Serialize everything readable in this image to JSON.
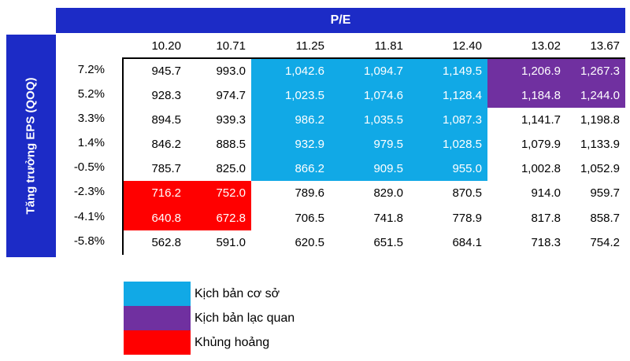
{
  "header": {
    "title": "P/E"
  },
  "y_axis": {
    "label": "Tăng trưởng EPS (QOQ)"
  },
  "colors": {
    "header_blue": "#1c2bc6",
    "base_scenario": "#11a9e6",
    "optimistic_scenario": "#7030a0",
    "crisis": "#ff0000",
    "border": "#000000"
  },
  "table": {
    "columns": [
      "10.20",
      "10.71",
      "11.25",
      "11.81",
      "12.40",
      "13.02",
      "13.67"
    ],
    "rows": [
      {
        "label": "7.2%",
        "values": [
          "945.7",
          "993.0",
          "1,042.6",
          "1,094.7",
          "1,149.5",
          "1,206.9",
          "1,267.3"
        ]
      },
      {
        "label": "5.2%",
        "values": [
          "928.3",
          "974.7",
          "1,023.5",
          "1,074.6",
          "1,128.4",
          "1,184.8",
          "1,244.0"
        ]
      },
      {
        "label": "3.3%",
        "values": [
          "894.5",
          "939.3",
          "986.2",
          "1,035.5",
          "1,087.3",
          "1,141.7",
          "1,198.8"
        ]
      },
      {
        "label": "1.4%",
        "values": [
          "846.2",
          "888.5",
          "932.9",
          "979.5",
          "1,028.5",
          "1,079.9",
          "1,133.9"
        ]
      },
      {
        "label": "-0.5%",
        "values": [
          "785.7",
          "825.0",
          "866.2",
          "909.5",
          "955.0",
          "1,002.8",
          "1,052.9"
        ]
      },
      {
        "label": "-2.3%",
        "values": [
          "716.2",
          "752.0",
          "789.6",
          "829.0",
          "870.5",
          "914.0",
          "959.7"
        ]
      },
      {
        "label": "-4.1%",
        "values": [
          "640.8",
          "672.8",
          "706.5",
          "741.8",
          "778.9",
          "817.8",
          "858.7"
        ]
      },
      {
        "label": "-5.8%",
        "values": [
          "562.8",
          "591.0",
          "620.5",
          "651.5",
          "684.1",
          "718.3",
          "754.2"
        ]
      }
    ],
    "zones": [
      {
        "class": "base",
        "name": "Kịch bản cơ sở",
        "rows": [
          0,
          4
        ],
        "cols": [
          2,
          4
        ]
      },
      {
        "class": "opt",
        "name": "Kịch bản lạc quan",
        "rows": [
          0,
          1
        ],
        "cols": [
          5,
          6
        ]
      },
      {
        "class": "crisis",
        "name": "Khủng hoảng",
        "rows": [
          5,
          6
        ],
        "cols": [
          0,
          1
        ]
      }
    ]
  },
  "legend": [
    {
      "label": "Kịch bản cơ sở",
      "color": "#11a9e6"
    },
    {
      "label": "Kịch bản lạc quan",
      "color": "#7030a0"
    },
    {
      "label": "Khủng hoảng",
      "color": "#ff0000"
    }
  ],
  "chart_data": {
    "type": "heatmap",
    "title": "P/E sensitivity table",
    "xlabel": "P/E",
    "ylabel": "Tăng trưởng EPS (QOQ)",
    "x_ticks": [
      10.2,
      10.71,
      11.25,
      11.81,
      12.4,
      13.02,
      13.67
    ],
    "y_ticks": [
      "7.2%",
      "5.2%",
      "3.3%",
      "1.4%",
      "-0.5%",
      "-2.3%",
      "-4.1%",
      "-5.8%"
    ],
    "values": [
      [
        945.7,
        993.0,
        1042.6,
        1094.7,
        1149.5,
        1206.9,
        1267.3
      ],
      [
        928.3,
        974.7,
        1023.5,
        1074.6,
        1128.4,
        1184.8,
        1244.0
      ],
      [
        894.5,
        939.3,
        986.2,
        1035.5,
        1087.3,
        1141.7,
        1198.8
      ],
      [
        846.2,
        888.5,
        932.9,
        979.5,
        1028.5,
        1079.9,
        1133.9
      ],
      [
        785.7,
        825.0,
        866.2,
        909.5,
        955.0,
        1002.8,
        1052.9
      ],
      [
        716.2,
        752.0,
        789.6,
        829.0,
        870.5,
        914.0,
        959.7
      ],
      [
        640.8,
        672.8,
        706.5,
        741.8,
        778.9,
        817.8,
        858.7
      ],
      [
        562.8,
        591.0,
        620.5,
        651.5,
        684.1,
        718.3,
        754.2
      ]
    ],
    "zones": [
      {
        "name": "Kịch bản cơ sở",
        "color": "#11a9e6",
        "row_range": [
          0,
          4
        ],
        "col_range": [
          2,
          4
        ]
      },
      {
        "name": "Kịch bản lạc quan",
        "color": "#7030a0",
        "row_range": [
          0,
          1
        ],
        "col_range": [
          5,
          6
        ]
      },
      {
        "name": "Khủng hoảng",
        "color": "#ff0000",
        "row_range": [
          5,
          6
        ],
        "col_range": [
          0,
          1
        ]
      }
    ],
    "legend_position": "bottom-left",
    "grid": false
  }
}
